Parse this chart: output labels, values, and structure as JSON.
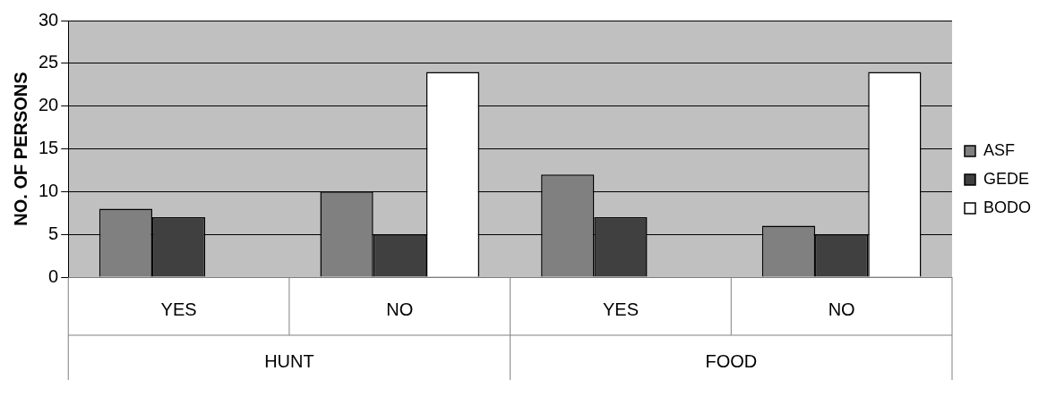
{
  "chart_data": {
    "type": "bar",
    "ylabel": "NO. OF PERSONS",
    "categories": [
      "YES",
      "NO",
      "YES",
      "NO"
    ],
    "series": [
      {
        "name": "ASF",
        "color": "#808080",
        "values": [
          8,
          10,
          12,
          6
        ]
      },
      {
        "name": "GEDE",
        "color": "#404040",
        "values": [
          7,
          5,
          7,
          5
        ]
      },
      {
        "name": "BODO",
        "color": "#ffffff",
        "values": [
          null,
          24,
          null,
          24
        ]
      }
    ],
    "ylim": [
      0,
      30
    ],
    "yticks": [
      0,
      5,
      10,
      15,
      20,
      25,
      30
    ],
    "grid": "y",
    "legend": "right",
    "annotations": [
      "HUNT",
      "FOOD"
    ]
  }
}
